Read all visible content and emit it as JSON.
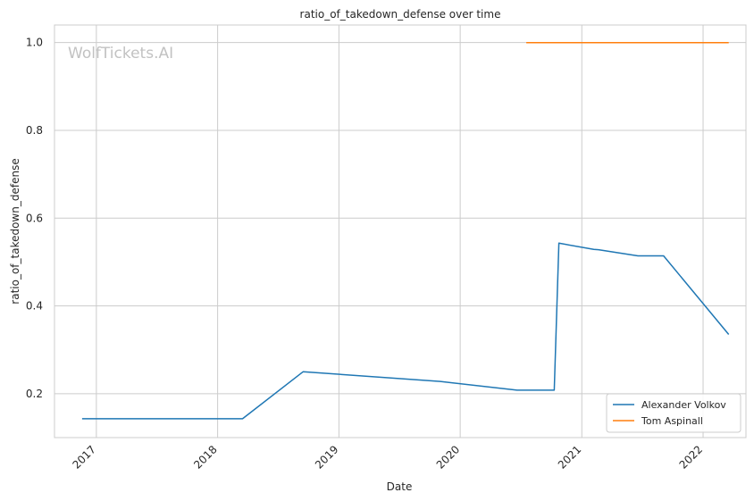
{
  "chart_data": {
    "type": "line",
    "title": "ratio_of_takedown_defense over time",
    "xlabel": "Date",
    "ylabel": "ratio_of_takedown_defense",
    "watermark": "WolfTickets.AI",
    "x_ticks": [
      "2017",
      "2018",
      "2019",
      "2020",
      "2021",
      "2022"
    ],
    "y_ticks": [
      "0.2",
      "0.4",
      "0.6",
      "0.8",
      "1.0"
    ],
    "xlim": [
      "2016-08-28",
      "2022-05-10"
    ],
    "ylim": [
      0.1,
      1.04
    ],
    "grid": true,
    "legend_position": "lower-right",
    "series": [
      {
        "name": "Alexander Volkov",
        "color": "#1f77b4",
        "points": [
          {
            "x": "2016-11-19",
            "y": 0.143
          },
          {
            "x": "2018-03-17",
            "y": 0.143
          },
          {
            "x": "2018-09-15",
            "y": 0.25
          },
          {
            "x": "2019-11-02",
            "y": 0.228
          },
          {
            "x": "2020-06-20",
            "y": 0.208
          },
          {
            "x": "2020-10-10",
            "y": 0.208
          },
          {
            "x": "2020-10-24",
            "y": 0.543
          },
          {
            "x": "2021-02-06",
            "y": 0.529
          },
          {
            "x": "2021-02-20",
            "y": 0.528
          },
          {
            "x": "2021-06-19",
            "y": 0.514
          },
          {
            "x": "2021-09-04",
            "y": 0.514
          },
          {
            "x": "2022-03-19",
            "y": 0.335
          }
        ]
      },
      {
        "name": "Tom Aspinall",
        "color": "#ff7f0e",
        "points": [
          {
            "x": "2020-07-18",
            "y": 1.0
          },
          {
            "x": "2022-03-19",
            "y": 1.0
          }
        ]
      }
    ]
  }
}
